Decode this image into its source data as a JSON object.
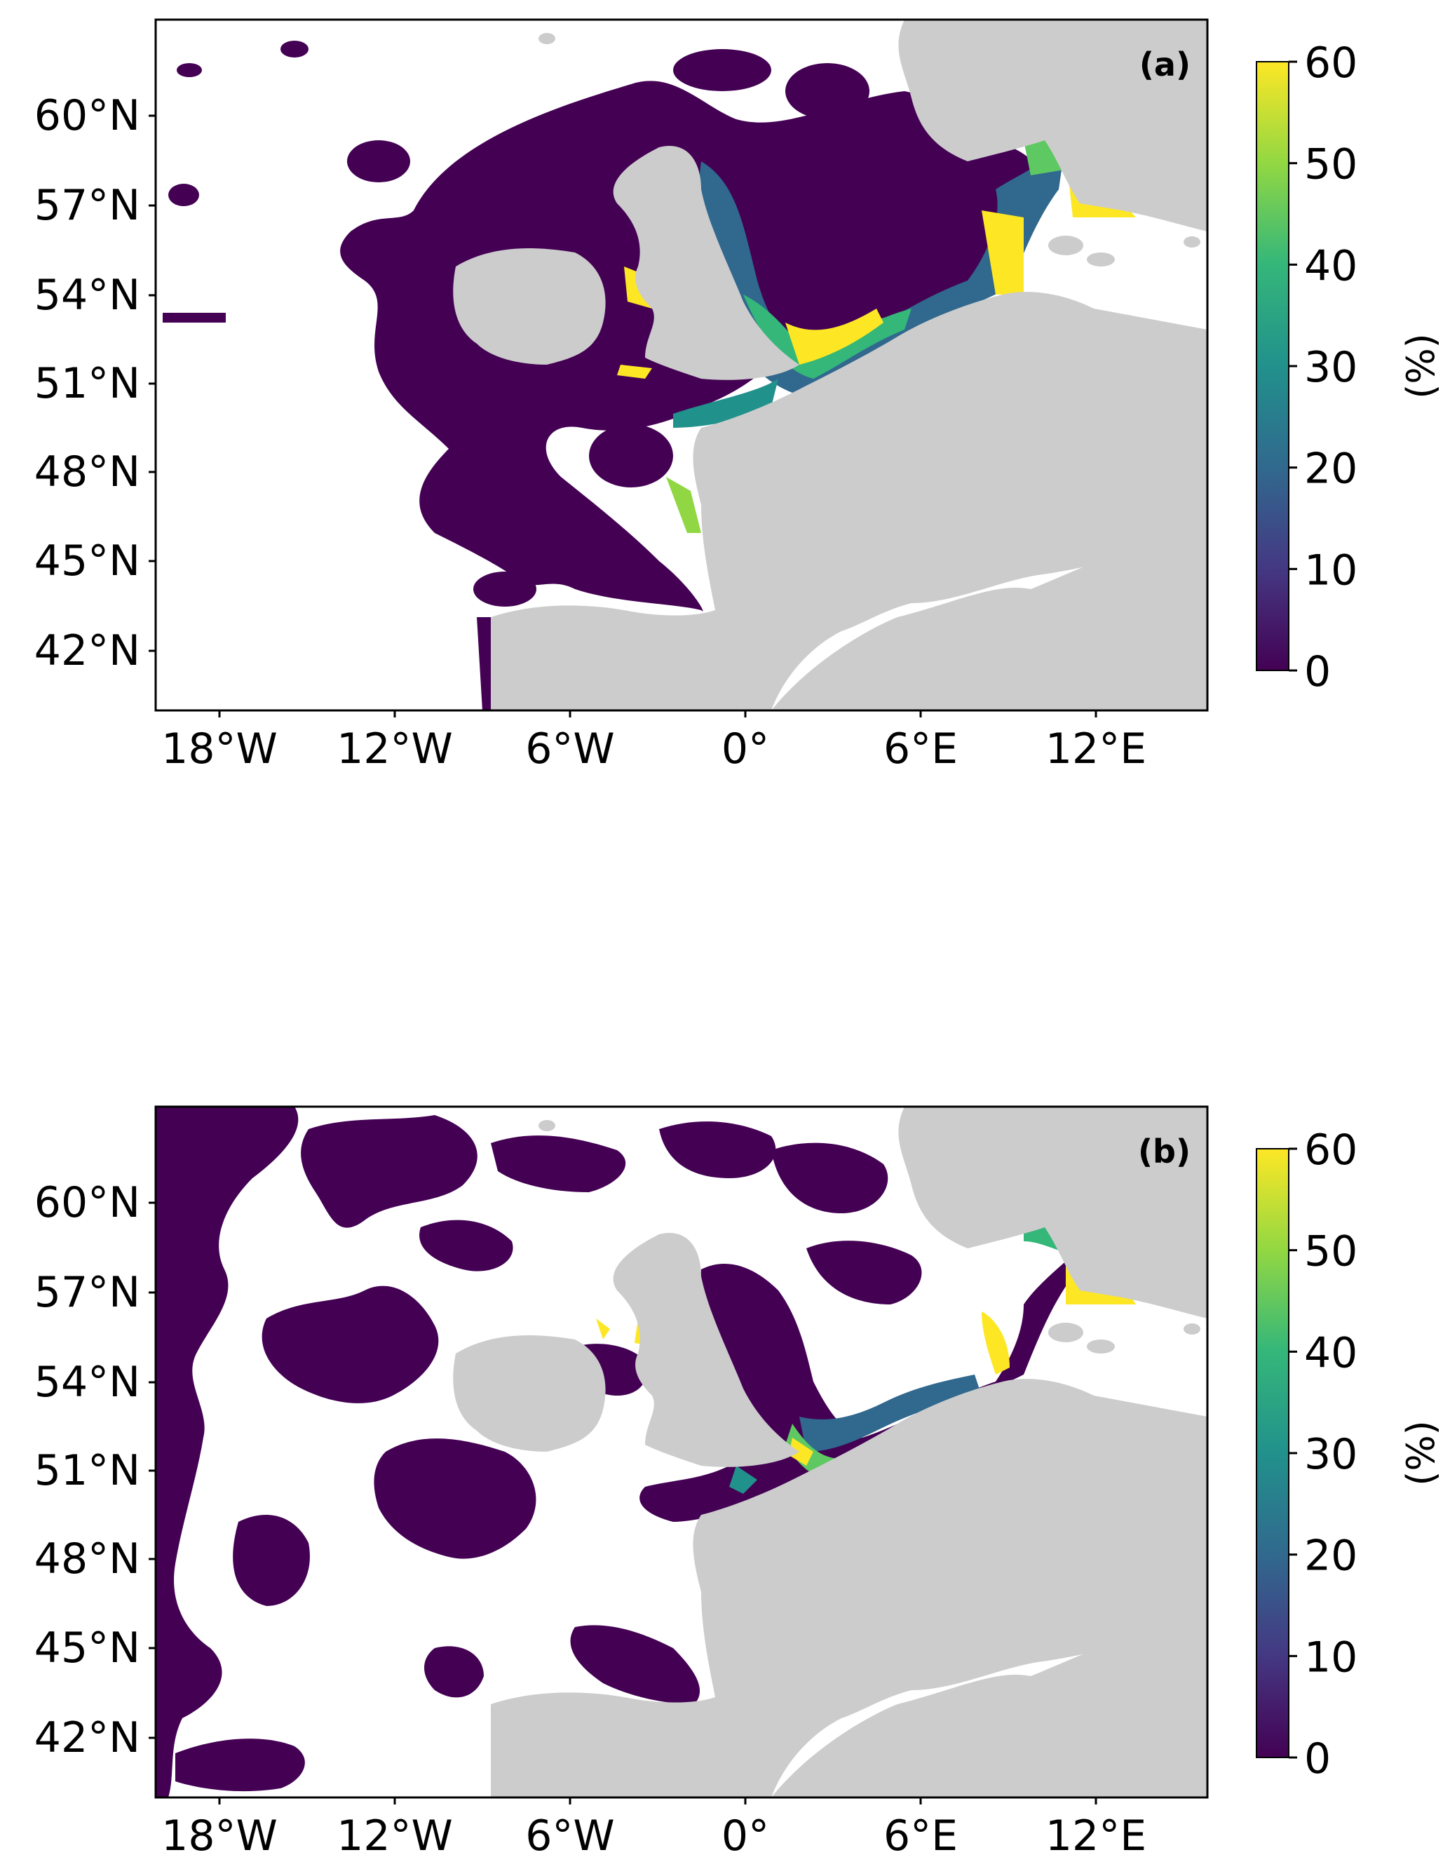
{
  "panels": [
    {
      "label": "(a)",
      "lat_ticks": [
        "60°N",
        "57°N",
        "54°N",
        "51°N",
        "48°N",
        "45°N",
        "42°N"
      ],
      "lon_ticks": [
        "18°W",
        "12°W",
        "6°W",
        "0°",
        "6°E",
        "12°E"
      ],
      "colorbar": {
        "ticks": [
          "0",
          "10",
          "20",
          "30",
          "40",
          "50",
          "60"
        ],
        "label": "(%)",
        "min": 0,
        "max": 60
      }
    },
    {
      "label": "(b)",
      "lat_ticks": [
        "60°N",
        "57°N",
        "54°N",
        "51°N",
        "48°N",
        "45°N",
        "42°N"
      ],
      "lon_ticks": [
        "18°W",
        "12°W",
        "6°W",
        "0°",
        "6°E",
        "12°E"
      ],
      "colorbar": {
        "ticks": [
          "0",
          "10",
          "20",
          "30",
          "40",
          "50",
          "60"
        ],
        "label": "(%)",
        "min": 0,
        "max": 60
      }
    }
  ],
  "map": {
    "lon_range": [
      -20,
      15
    ],
    "lat_range": [
      40,
      63
    ],
    "colormap": "viridis",
    "colors": {
      "land": "#cccccc",
      "no_data": "#ffffff",
      "low": "#440154",
      "mid_low": "#3b528b",
      "mid": "#21918c",
      "mid_high": "#5ec962",
      "high": "#fde725"
    }
  }
}
